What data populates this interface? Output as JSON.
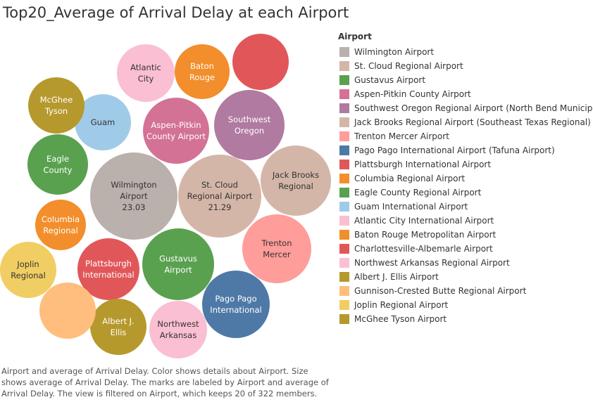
{
  "chart_data": {
    "type": "bubble",
    "title": "Top20_Average of Arrival Delay at each Airport",
    "legend_title": "Airport",
    "legend_position": "right",
    "caption": "Airport and average of Arrival Delay. Color shows details about Airport. Size shows average of Arrival Delay. The marks are labeled by Airport and average of Arrival Delay. The view is filtered on Airport, which keeps 20 of 322 members.",
    "bubbles": [
      {
        "airport": "Wilmington Airport",
        "label": [
          "Wilmington",
          "Airport",
          "23.03"
        ],
        "value": 23.03,
        "color": "#bab0ac"
      },
      {
        "airport": "St. Cloud Regional Airport",
        "label": [
          "St. Cloud",
          "Regional Airport",
          "21.29"
        ],
        "value": 21.29,
        "color": "#d4b6a8"
      },
      {
        "airport": "Gustavus Airport",
        "label": [
          "Gustavus",
          "Airport"
        ],
        "value": null,
        "color": "#59a14f"
      },
      {
        "airport": "Aspen-Pitkin County Airport",
        "label": [
          "Aspen-Pitkin",
          "County Airport"
        ],
        "value": null,
        "color": "#d37295"
      },
      {
        "airport": "Southwest Oregon Regional Airport (North Bend Municipal)",
        "label": [
          "Southwest",
          "Oregon"
        ],
        "value": null,
        "color": "#b07aa1"
      },
      {
        "airport": "Jack Brooks Regional Airport (Southeast Texas Regional)",
        "label": [
          "Jack Brooks",
          "Regional"
        ],
        "value": null,
        "color": "#d4b6a8"
      },
      {
        "airport": "Trenton Mercer Airport",
        "label": [
          "Trenton",
          "Mercer"
        ],
        "value": null,
        "color": "#ff9d9a"
      },
      {
        "airport": "Pago Pago International Airport (Tafuna Airport)",
        "label": [
          "Pago Pago",
          "International"
        ],
        "value": null,
        "color": "#4e79a7"
      },
      {
        "airport": "Plattsburgh International Airport",
        "label": [
          "Plattsburgh",
          "International"
        ],
        "value": null,
        "color": "#e15759"
      },
      {
        "airport": "Columbia Regional Airport",
        "label": [
          "Columbia",
          "Regional"
        ],
        "value": null,
        "color": "#f28e2b"
      },
      {
        "airport": "Eagle County Regional Airport",
        "label": [
          "Eagle",
          "County"
        ],
        "value": null,
        "color": "#59a14f"
      },
      {
        "airport": "Guam International Airport",
        "label": [
          "Guam"
        ],
        "value": null,
        "color": "#a0cbe8"
      },
      {
        "airport": "Atlantic City International Airport",
        "label": [
          "Atlantic",
          "City"
        ],
        "value": null,
        "color": "#fabfd2"
      },
      {
        "airport": "Baton Rouge Metropolitan Airport",
        "label": [
          "Baton",
          "Rouge"
        ],
        "value": null,
        "color": "#f28e2b"
      },
      {
        "airport": "Charlottesville-Albemarle Airport",
        "label": [],
        "value": null,
        "color": "#e15759"
      },
      {
        "airport": "Northwest Arkansas Regional Airport",
        "label": [
          "Northwest",
          "Arkansas"
        ],
        "value": null,
        "color": "#fabfd2"
      },
      {
        "airport": "Albert J. Ellis Airport",
        "label": [
          "Albert J.",
          "Ellis"
        ],
        "value": null,
        "color": "#b6992d"
      },
      {
        "airport": "Gunnison-Crested Butte Regional Airport",
        "label": [],
        "value": null,
        "color": "#ffbe7d"
      },
      {
        "airport": "Joplin Regional Airport",
        "label": [
          "Joplin",
          "Regional"
        ],
        "value": null,
        "color": "#f1ce63"
      },
      {
        "airport": "McGhee Tyson Airport",
        "label": [
          "McGhee",
          "Tyson"
        ],
        "value": null,
        "color": "#b6992d"
      }
    ]
  }
}
